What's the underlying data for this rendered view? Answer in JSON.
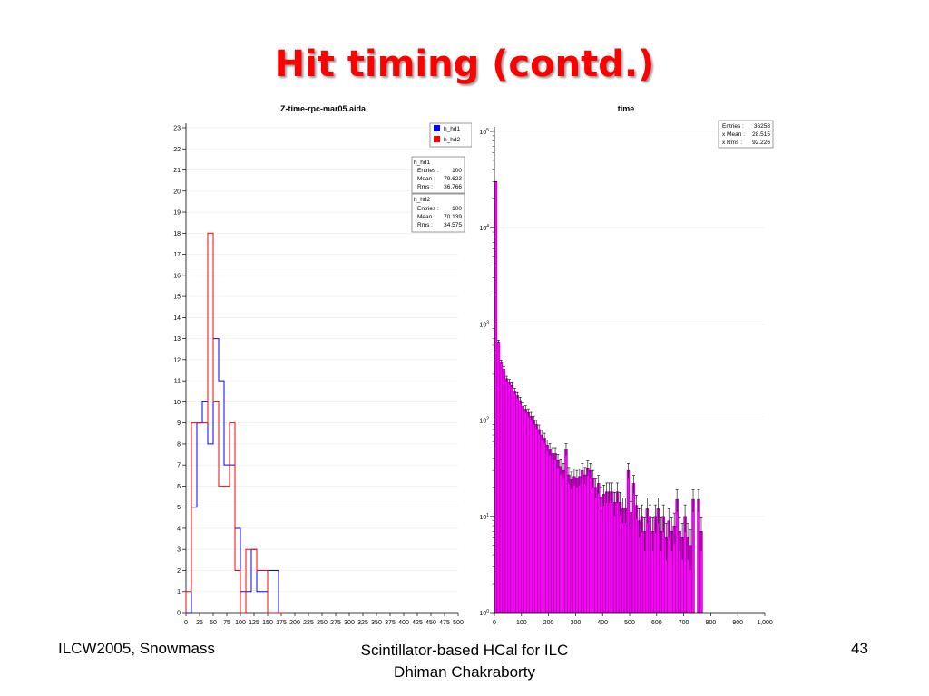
{
  "slide": {
    "title": "Hit timing (contd.)",
    "footer_left": "ILCW2005, Snowmass",
    "footer_center_line1": "Scintillator-based HCal for ILC",
    "footer_center_line2": "Dhiman Chakraborty",
    "page_number": "43"
  },
  "chart_data": [
    {
      "type": "histogram",
      "title": "Z-time-rpc-mar05.aida",
      "xlim": [
        0,
        500
      ],
      "ylim": [
        0,
        23
      ],
      "xticks": [
        0,
        25,
        50,
        75,
        100,
        125,
        150,
        175,
        200,
        225,
        250,
        275,
        300,
        325,
        350,
        375,
        400,
        425,
        450,
        475,
        500
      ],
      "yticks": [
        0,
        1,
        2,
        3,
        4,
        5,
        6,
        7,
        8,
        9,
        10,
        11,
        12,
        13,
        14,
        15,
        16,
        17,
        18,
        19,
        20,
        21,
        22,
        23
      ],
      "bin_edges": [
        0,
        10,
        20,
        30,
        40,
        50,
        60,
        70,
        80,
        90,
        100,
        110,
        120,
        130,
        140,
        150,
        160,
        170,
        180
      ],
      "legend": [
        "h_hd1",
        "h_hd2"
      ],
      "series": [
        {
          "name": "h_hd1",
          "color": "#0000ff",
          "counts": [
            0,
            5,
            9,
            10,
            8,
            13,
            11,
            7,
            7,
            4,
            1,
            1,
            3,
            1,
            1,
            2,
            2,
            0
          ]
        },
        {
          "name": "h_hd2",
          "color": "#ff0000",
          "counts": [
            1,
            9,
            9,
            9,
            18,
            10,
            6,
            6,
            9,
            2,
            0,
            3,
            3,
            2,
            2,
            0,
            0,
            0
          ]
        }
      ],
      "stats": [
        {
          "name": "h_hd1",
          "entries_label": "Entries :",
          "entries": "100",
          "mean_label": "Mean :",
          "mean": "79.623",
          "rms_label": "Rms :",
          "rms": "36.766"
        },
        {
          "name": "h_hd2",
          "entries_label": "Entries :",
          "entries": "100",
          "mean_label": "Mean :",
          "mean": "70.139",
          "rms_label": "Rms :",
          "rms": "34.575"
        }
      ]
    },
    {
      "type": "histogram",
      "title": "time",
      "log_y": true,
      "xlim": [
        0,
        1000
      ],
      "ylim": [
        1,
        100000
      ],
      "xticks": [
        0,
        100,
        200,
        300,
        400,
        500,
        600,
        700,
        800,
        900,
        1000
      ],
      "xtick_labels": [
        "0",
        "100",
        "200",
        "300",
        "400",
        "500",
        "600",
        "700",
        "800",
        "900",
        "1,000"
      ],
      "ytick_labels": [
        {
          "base": "10",
          "exp": "0"
        },
        {
          "base": "10",
          "exp": "1"
        },
        {
          "base": "10",
          "exp": "2"
        },
        {
          "base": "10",
          "exp": "3"
        },
        {
          "base": "10",
          "exp": "4"
        },
        {
          "base": "10",
          "exp": "5"
        }
      ],
      "bin_width": 10,
      "fill_color": "#ff00ff",
      "counts": [
        30000,
        650,
        400,
        340,
        270,
        250,
        230,
        200,
        180,
        160,
        140,
        130,
        120,
        110,
        100,
        90,
        80,
        70,
        65,
        55,
        50,
        45,
        45,
        38,
        33,
        30,
        50,
        27,
        24,
        26,
        25,
        26,
        30,
        27,
        32,
        30,
        25,
        20,
        22,
        16,
        17,
        18,
        18,
        18,
        14,
        18,
        14,
        12,
        12,
        30,
        11,
        22,
        13,
        9,
        10,
        7,
        12,
        10,
        7,
        10,
        12,
        7,
        10,
        6,
        9,
        7,
        8,
        15,
        7,
        6,
        10,
        6,
        5,
        15,
        0,
        15,
        7
      ],
      "stats": {
        "entries_label": "Entries :",
        "entries": "36258",
        "mean_label": "x Mean :",
        "mean": "28.515",
        "rms_label": "x Rms :",
        "rms": "92.226"
      }
    }
  ]
}
